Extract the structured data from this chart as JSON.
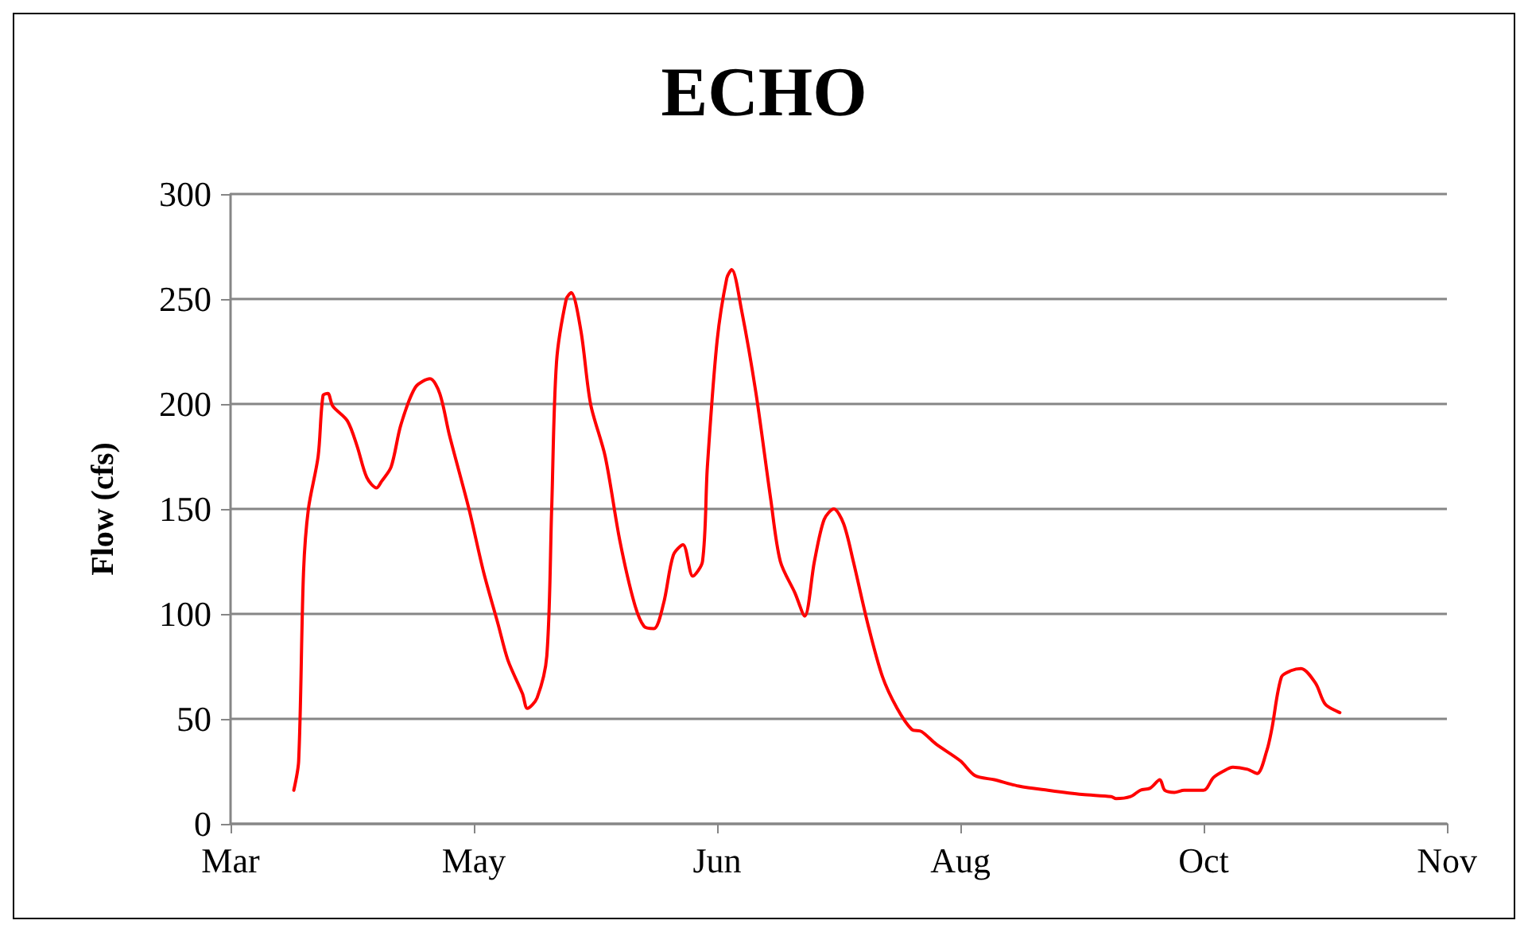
{
  "chart_data": {
    "type": "line",
    "title": "ECHO",
    "ylabel": "Flow (cfs)",
    "x": [
      "--03-28",
      "--03-29",
      "--03-30",
      "--03-31",
      "--04-02",
      "--04-03",
      "--04-04",
      "--04-05",
      "--04-08",
      "--04-10",
      "--04-12",
      "--04-14",
      "--04-15",
      "--04-17",
      "--04-19",
      "--04-22",
      "--04-25",
      "--04-27",
      "--04-29",
      "--05-03",
      "--05-06",
      "--05-09",
      "--05-11",
      "--05-14",
      "--05-15",
      "--05-17",
      "--05-19",
      "--05-20",
      "--05-21",
      "--05-23",
      "--05-24",
      "--05-26",
      "--05-28",
      "--05-31",
      "--06-03",
      "--06-06",
      "--06-08",
      "--06-10",
      "--06-12",
      "--06-14",
      "--06-16",
      "--06-18",
      "--06-20",
      "--06-21",
      "--06-23",
      "--06-25",
      "--06-26",
      "--06-28",
      "--07-01",
      "--07-04",
      "--07-06",
      "--07-09",
      "--07-11",
      "--07-13",
      "--07-15",
      "--07-17",
      "--07-19",
      "--07-21",
      "--07-24",
      "--07-27",
      "--07-30",
      "--08-02",
      "--08-04",
      "--08-07",
      "--08-12",
      "--08-15",
      "--08-19",
      "--08-24",
      "--08-30",
      "--09-06",
      "--09-12",
      "--09-13",
      "--09-16",
      "--09-18",
      "--09-20",
      "--09-22",
      "--09-23",
      "--09-25",
      "--09-27",
      "--10-01",
      "--10-03",
      "--10-05",
      "--10-07",
      "--10-10",
      "--10-12",
      "--10-14",
      "--10-15",
      "--10-17",
      "--10-19",
      "--10-21",
      "--10-24",
      "--10-26",
      "--10-29"
    ],
    "series": [
      {
        "color": "#ff0000",
        "values": [
          16,
          30,
          120,
          150,
          175,
          204,
          205,
          199,
          192,
          180,
          165,
          160,
          163,
          170,
          190,
          208,
          212,
          205,
          185,
          150,
          120,
          95,
          78,
          62,
          55,
          60,
          80,
          150,
          220,
          250,
          253,
          235,
          200,
          175,
          135,
          105,
          94,
          93,
          105,
          128,
          133,
          118,
          125,
          170,
          230,
          260,
          264,
          245,
          205,
          155,
          125,
          110,
          99,
          125,
          145,
          150,
          143,
          125,
          95,
          70,
          55,
          45,
          44,
          38,
          30,
          23,
          21,
          18,
          16,
          14,
          13,
          12,
          13,
          16,
          17,
          21,
          16,
          15,
          16,
          16,
          22,
          25,
          27,
          26,
          24,
          35,
          45,
          70,
          73,
          74,
          67,
          57,
          53
        ]
      }
    ],
    "xlim": [
      "--03-15",
      "--11-20"
    ],
    "xticks": [
      {
        "value": "--03-15",
        "label": "Mar"
      },
      {
        "value": "--05-04",
        "label": "May"
      },
      {
        "value": "--06-23",
        "label": "Jun"
      },
      {
        "value": "--08-12",
        "label": "Aug"
      },
      {
        "value": "--10-01",
        "label": "Oct"
      },
      {
        "value": "--11-20",
        "label": "Nov"
      }
    ],
    "ylim": [
      0,
      300
    ],
    "yticks": [
      0,
      50,
      100,
      150,
      200,
      250,
      300
    ],
    "grid": "y",
    "marker": "none",
    "line_style": "solid"
  }
}
